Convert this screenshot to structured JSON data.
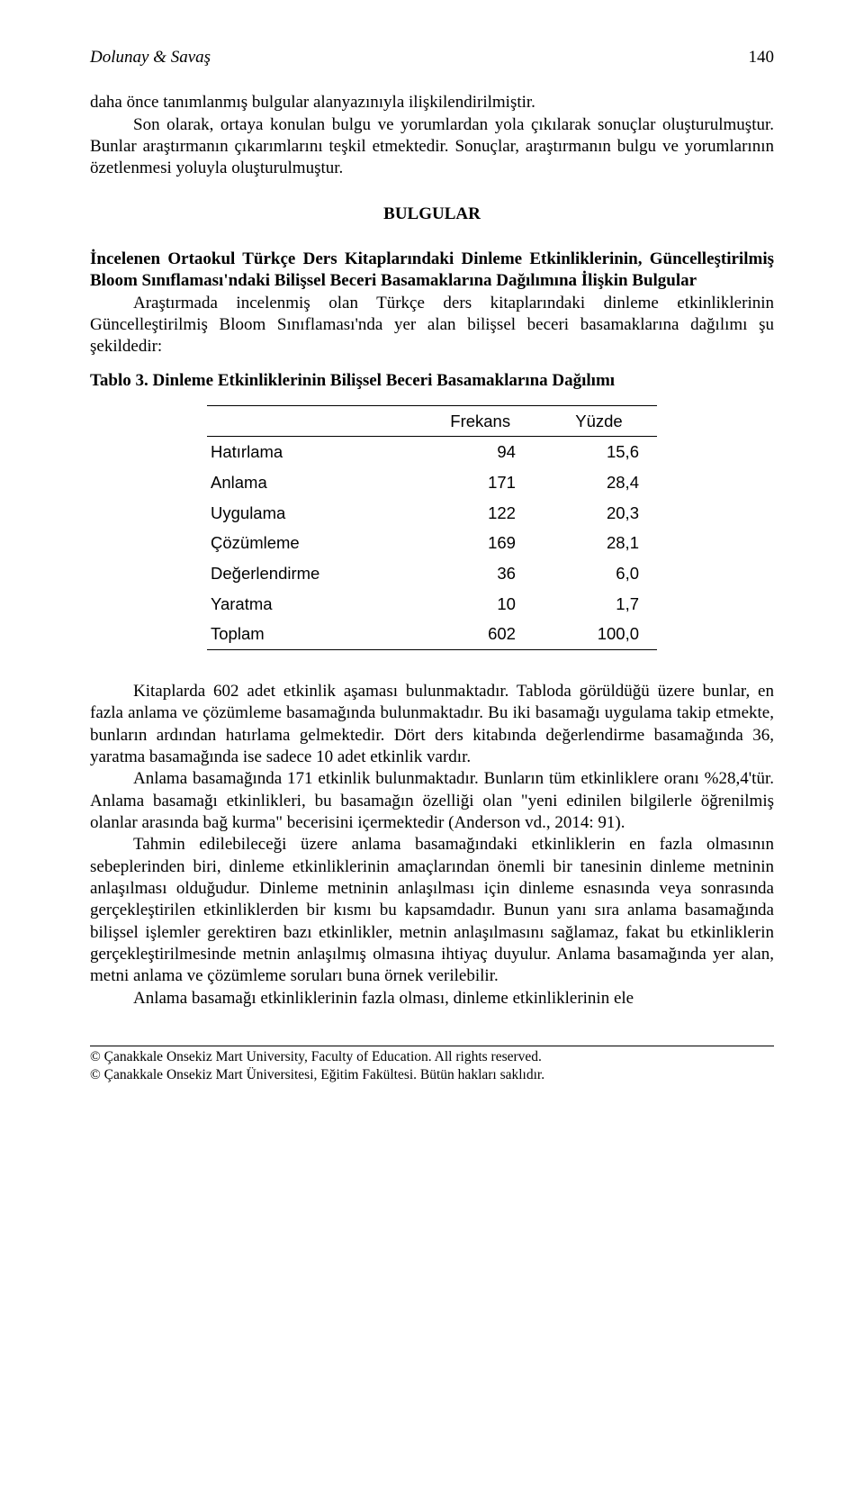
{
  "header": {
    "running_head": "Dolunay & Savaş",
    "page_number": "140"
  },
  "para1": "daha önce tanımlanmış bulgular alanyazınıyla ilişkilendirilmiştir.",
  "para2": "Son olarak, ortaya konulan bulgu ve yorumlardan yola çıkılarak sonuçlar oluşturulmuştur. Bunlar araştırmanın çıkarımlarını teşkil etmektedir. Sonuçlar, araştırmanın bulgu ve yorumlarının özetlenmesi yoluyla oluşturulmuştur.",
  "section_heading": "BULGULAR",
  "para3_bold": "İncelenen Ortaokul Türkçe Ders Kitaplarındaki Dinleme Etkinliklerinin, Güncelleştirilmiş Bloom Sınıflaması'ndaki Bilişsel Beceri Basamaklarına Dağılımına İlişkin Bulgular",
  "para4": "Araştırmada incelenmiş olan Türkçe ders kitaplarındaki dinleme etkinliklerinin Güncelleştirilmiş Bloom Sınıflaması'nda yer alan bilişsel beceri basamaklarına dağılımı şu şekildedir:",
  "table_caption": "Tablo 3. Dinleme Etkinliklerinin Bilişsel Beceri Basamaklarına Dağılımı",
  "table": {
    "type": "table",
    "background_color": "#ffffff",
    "border_color": "#000000",
    "font_family": "Arial",
    "font_size_pt": 11,
    "columns": [
      "",
      "Frekans",
      "Yüzde"
    ],
    "col_align": [
      "left",
      "right",
      "right"
    ],
    "rows": [
      [
        "Hatırlama",
        "94",
        "15,6"
      ],
      [
        "Anlama",
        "171",
        "28,4"
      ],
      [
        "Uygulama",
        "122",
        "20,3"
      ],
      [
        "Çözümleme",
        "169",
        "28,1"
      ],
      [
        "Değerlendirme",
        "36",
        "6,0"
      ],
      [
        "Yaratma",
        "10",
        "1,7"
      ],
      [
        "Toplam",
        "602",
        "100,0"
      ]
    ]
  },
  "para5": "Kitaplarda 602 adet etkinlik aşaması bulunmaktadır. Tabloda görüldüğü üzere bunlar, en fazla anlama ve çözümleme basamağında bulunmaktadır. Bu iki basamağı uygulama takip etmekte, bunların ardından hatırlama gelmektedir. Dört ders kitabında değerlendirme basamağında 36, yaratma basamağında ise sadece 10 adet etkinlik vardır.",
  "para6": "Anlama basamağında 171 etkinlik bulunmaktadır. Bunların tüm etkinliklere oranı %28,4'tür. Anlama basamağı etkinlikleri, bu basamağın özelliği olan \"yeni edinilen bilgilerle öğrenilmiş olanlar arasında bağ kurma\" becerisini içermektedir (Anderson vd., 2014: 91).",
  "para7": "Tahmin edilebileceği üzere anlama basamağındaki etkinliklerin en fazla olmasının sebeplerinden biri, dinleme etkinliklerinin amaçlarından önemli bir tanesinin dinleme metninin anlaşılması olduğudur. Dinleme metninin anlaşılması için dinleme esnasında veya sonrasında gerçekleştirilen etkinliklerden bir kısmı bu kapsamdadır. Bunun yanı sıra anlama basamağında bilişsel işlemler gerektiren bazı etkinlikler, metnin anlaşılmasını sağlamaz, fakat bu etkinliklerin gerçekleştirilmesinde metnin anlaşılmış olmasına ihtiyaç duyulur. Anlama basamağında yer alan, metni anlama ve çözümleme soruları buna örnek verilebilir.",
  "para8": "Anlama basamağı etkinliklerinin fazla olması, dinleme etkinliklerinin ele",
  "footer": {
    "line1": "© Çanakkale Onsekiz Mart University, Faculty of Education. All rights reserved.",
    "line2": "© Çanakkale Onsekiz Mart Üniversitesi, Eğitim Fakültesi. Bütün hakları saklıdır."
  }
}
